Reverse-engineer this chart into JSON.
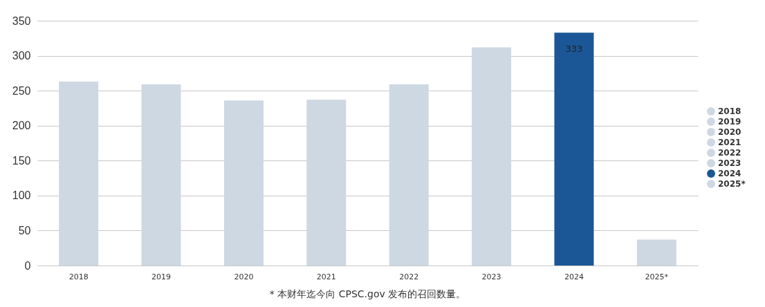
{
  "chart_data": {
    "type": "bar",
    "categories": [
      "2018",
      "2019",
      "2020",
      "2021",
      "2022",
      "2023",
      "2024",
      "2025*"
    ],
    "series": [
      {
        "name": "2018",
        "color": "#cdd8e3",
        "values": [
          263,
          null,
          null,
          null,
          null,
          null,
          null,
          null
        ]
      },
      {
        "name": "2019",
        "color": "#cdd8e3",
        "values": [
          null,
          259,
          null,
          null,
          null,
          null,
          null,
          null
        ]
      },
      {
        "name": "2020",
        "color": "#cdd8e3",
        "values": [
          null,
          null,
          236,
          null,
          null,
          null,
          null,
          null
        ]
      },
      {
        "name": "2021",
        "color": "#cdd8e3",
        "values": [
          null,
          null,
          null,
          237,
          null,
          null,
          null,
          null
        ]
      },
      {
        "name": "2022",
        "color": "#cdd8e3",
        "values": [
          null,
          null,
          null,
          null,
          259,
          null,
          null,
          null
        ]
      },
      {
        "name": "2023",
        "color": "#cdd8e3",
        "values": [
          null,
          null,
          null,
          null,
          null,
          312,
          null,
          null
        ]
      },
      {
        "name": "2024",
        "color": "#1b5796",
        "values": [
          null,
          null,
          null,
          null,
          null,
          null,
          333,
          null
        ]
      },
      {
        "name": "2025*",
        "color": "#cdd8e3",
        "values": [
          null,
          null,
          null,
          null,
          null,
          null,
          null,
          37
        ]
      }
    ],
    "ylim": [
      0,
      350
    ],
    "yticks": [
      0,
      50,
      100,
      150,
      200,
      250,
      300,
      350
    ],
    "grid": "y",
    "legend": "right",
    "annotations": [
      {
        "text": "333",
        "x": "2024",
        "y": 333
      },
      "* 本财年迄今向 CPSC.gov 发布的召回数量。"
    ]
  }
}
